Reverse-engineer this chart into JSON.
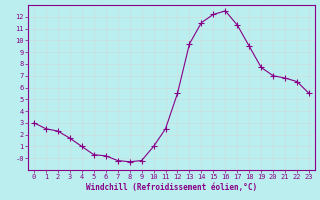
{
  "hours": [
    0,
    1,
    2,
    3,
    4,
    5,
    6,
    7,
    8,
    9,
    10,
    11,
    12,
    13,
    14,
    15,
    16,
    17,
    18,
    19,
    20,
    21,
    22,
    23
  ],
  "values": [
    3.0,
    2.5,
    2.3,
    1.7,
    1.0,
    0.3,
    0.2,
    -0.2,
    -0.3,
    -0.2,
    1.0,
    2.5,
    5.5,
    9.7,
    11.5,
    12.2,
    12.5,
    11.3,
    9.5,
    7.7,
    7.0,
    6.8,
    6.5,
    5.5
  ],
  "line_color": "#880088",
  "marker": "+",
  "marker_size": 4,
  "bg_color": "#bbeeee",
  "grid_color": "#ccdddd",
  "xlabel": "Windchill (Refroidissement éolien,°C)",
  "ylim": [
    -1,
    13
  ],
  "xlim": [
    -0.5,
    23.5
  ],
  "yticks": [
    0,
    1,
    2,
    3,
    4,
    5,
    6,
    7,
    8,
    9,
    10,
    11,
    12
  ],
  "xticks": [
    0,
    1,
    2,
    3,
    4,
    5,
    6,
    7,
    8,
    9,
    10,
    11,
    12,
    13,
    14,
    15,
    16,
    17,
    18,
    19,
    20,
    21,
    22,
    23
  ],
  "tick_color": "#880088",
  "label_color": "#880088",
  "spine_color": "#880088",
  "font_family": "monospace"
}
